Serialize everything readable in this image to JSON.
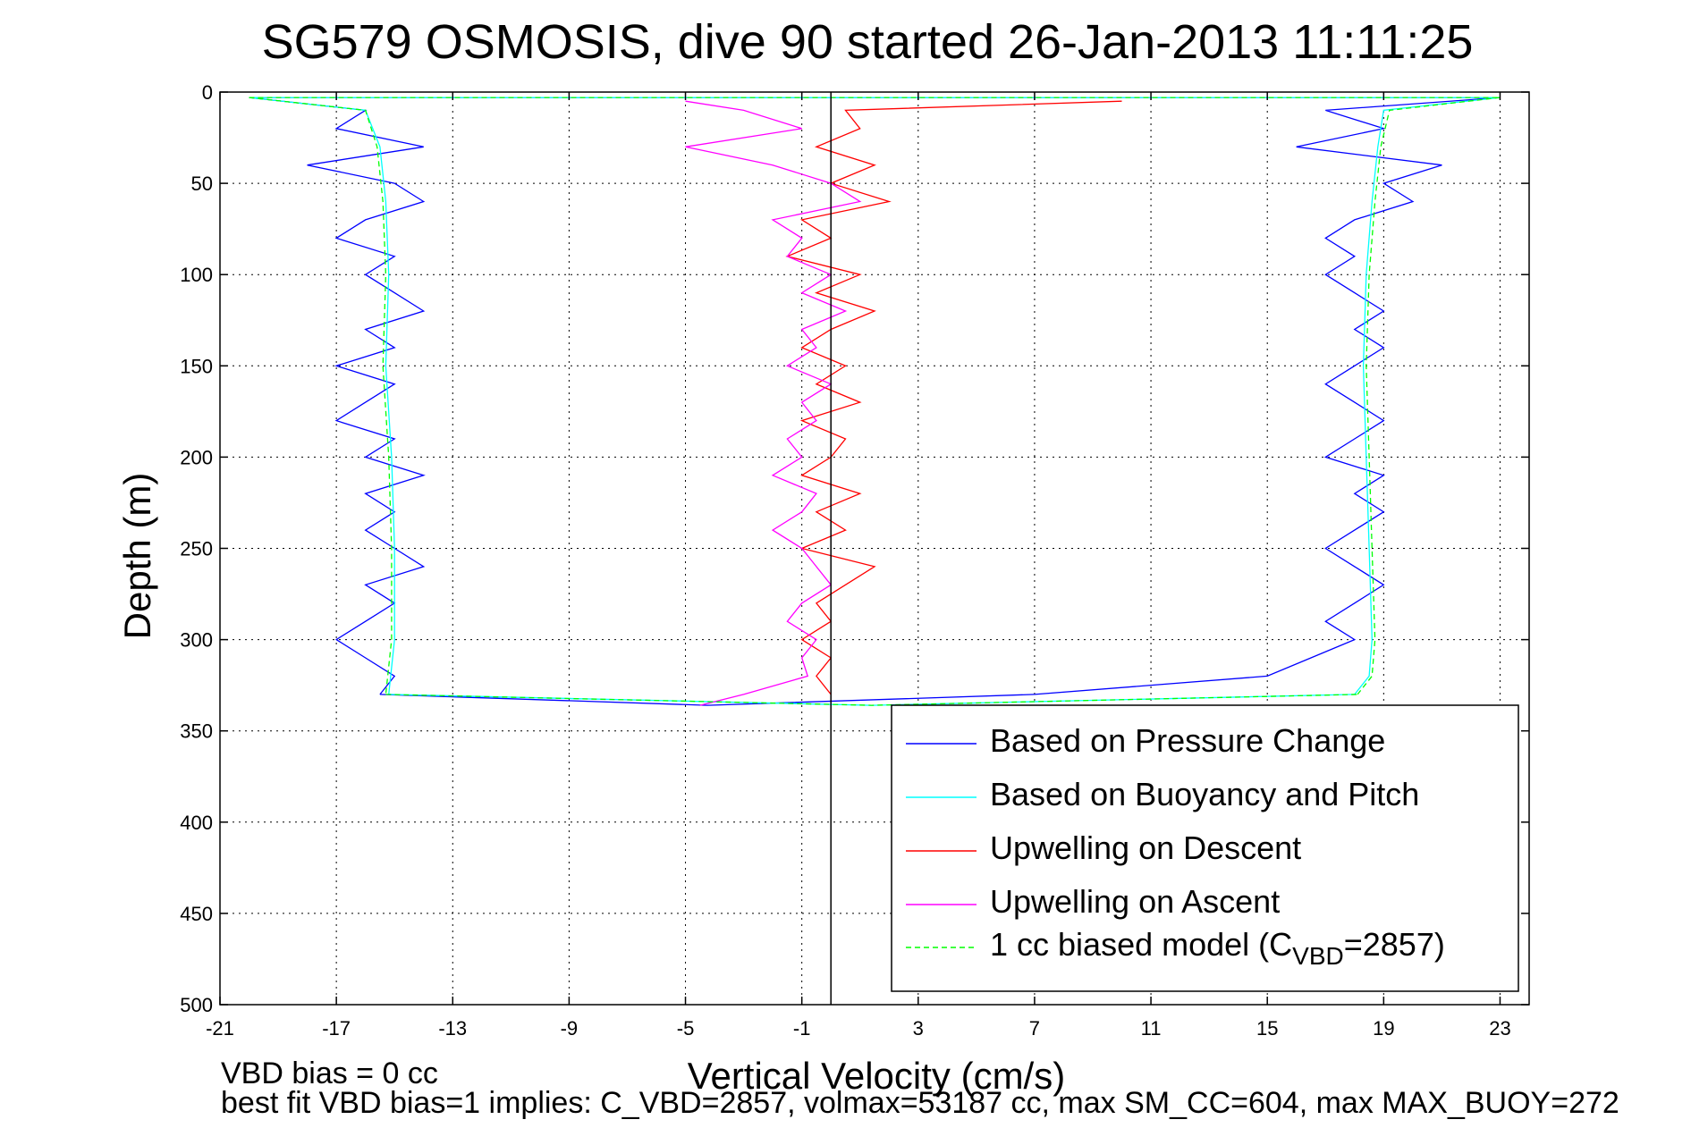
{
  "chart_data": {
    "type": "line",
    "title": "SG579 OSMOSIS, dive 90 started 26-Jan-2013 11:11:25",
    "xlabel": "Vertical Velocity (cm/s)",
    "ylabel": "Depth (m)",
    "xlim": [
      -21,
      24
    ],
    "ylim": [
      0,
      500
    ],
    "y_reversed": true,
    "xticks": [
      -21,
      -17,
      -13,
      -9,
      -5,
      -1,
      3,
      7,
      11,
      15,
      19,
      23
    ],
    "yticks": [
      0,
      50,
      100,
      150,
      200,
      250,
      300,
      350,
      400,
      450,
      500
    ],
    "grid": true,
    "legend_position": "bottom-right",
    "reference_line_x": 0,
    "footer_lines": [
      "VBD bias = 0 cc",
      "best fit VBD bias=1 implies: C_VBD=2857, volmax=53187 cc, max SM_CC=604, max MAX_BUOY=272"
    ],
    "legend": [
      {
        "name": "Based on Pressure Change",
        "color": "#0000ff",
        "dashed": false
      },
      {
        "name": "Based on Buoyancy and Pitch",
        "color": "#00ffff",
        "dashed": false
      },
      {
        "name": "Upwelling on Descent",
        "color": "#ff0000",
        "dashed": false
      },
      {
        "name": "Upwelling on Ascent",
        "color": "#ff00ff",
        "dashed": false
      },
      {
        "name": "1 cc biased model (C",
        "sub": "VBD",
        "suffix": "=2857)",
        "color": "#00ff00",
        "dashed": true
      }
    ],
    "series": [
      {
        "name": "Based on Pressure Change",
        "color": "#0000ff",
        "descent": {
          "depth": [
            3,
            10,
            20,
            30,
            40,
            50,
            60,
            70,
            80,
            90,
            100,
            110,
            120,
            130,
            140,
            150,
            160,
            170,
            180,
            190,
            200,
            210,
            220,
            230,
            240,
            250,
            260,
            270,
            280,
            290,
            300,
            310,
            320,
            330
          ],
          "velocity": [
            -20,
            -16,
            -17,
            -14,
            -18,
            -15,
            -14,
            -16,
            -17,
            -15,
            -16,
            -15,
            -14,
            -16,
            -15,
            -17,
            -15,
            -16,
            -17,
            -15,
            -16,
            -14,
            -16,
            -15,
            -16,
            -15,
            -14,
            -16,
            -15,
            -16,
            -17,
            -16,
            -15,
            -15.5
          ]
        },
        "ascent": {
          "depth": [
            3,
            10,
            20,
            30,
            40,
            50,
            60,
            70,
            80,
            90,
            100,
            110,
            120,
            130,
            140,
            150,
            160,
            170,
            180,
            190,
            200,
            210,
            220,
            230,
            240,
            250,
            260,
            270,
            280,
            290,
            300,
            310,
            320,
            330
          ],
          "velocity": [
            23,
            17,
            19,
            16,
            21,
            19,
            20,
            18,
            17,
            18,
            17,
            18,
            19,
            18,
            19,
            18,
            17,
            18,
            19,
            18,
            17,
            19,
            18,
            19,
            18,
            17,
            18,
            19,
            18,
            17,
            18,
            16.5,
            15,
            7
          ]
        }
      },
      {
        "name": "Based on Buoyancy and Pitch",
        "color": "#00ffff",
        "descent": {
          "depth": [
            3,
            10,
            30,
            60,
            100,
            150,
            200,
            250,
            300,
            330
          ],
          "velocity": [
            -20,
            -16,
            -15.5,
            -15.3,
            -15.2,
            -15.3,
            -15.1,
            -15,
            -15,
            -15.2
          ]
        },
        "ascent": {
          "depth": [
            3,
            10,
            30,
            60,
            100,
            150,
            200,
            250,
            300,
            320,
            330
          ],
          "velocity": [
            23,
            19,
            18.8,
            18.6,
            18.4,
            18.3,
            18.4,
            18.5,
            18.6,
            18.5,
            18
          ]
        }
      },
      {
        "name": "Upwelling on Descent",
        "color": "#ff0000",
        "depth": [
          5,
          10,
          20,
          30,
          40,
          50,
          60,
          70,
          80,
          90,
          100,
          110,
          120,
          130,
          140,
          150,
          160,
          170,
          180,
          190,
          200,
          210,
          220,
          230,
          240,
          250,
          260,
          270,
          280,
          290,
          300,
          310,
          320,
          330
        ],
        "velocity": [
          10,
          0.5,
          1,
          -0.5,
          1.5,
          0,
          2,
          -1,
          0,
          -1.5,
          1,
          -0.5,
          1.5,
          0,
          -1,
          0.5,
          -0.5,
          1,
          -1,
          0.5,
          0,
          -1,
          1,
          -0.5,
          0.5,
          -1,
          1.5,
          0.5,
          -0.5,
          0,
          -1,
          0,
          -0.5,
          0
        ]
      },
      {
        "name": "Upwelling on Ascent",
        "color": "#ff00ff",
        "depth": [
          5,
          10,
          20,
          30,
          40,
          50,
          60,
          70,
          80,
          90,
          100,
          110,
          120,
          130,
          140,
          150,
          160,
          170,
          180,
          190,
          200,
          210,
          220,
          230,
          240,
          250,
          260,
          270,
          280,
          290,
          300,
          310,
          320,
          330,
          336
        ],
        "velocity": [
          -5,
          -3,
          -1,
          -5,
          -2,
          0,
          1,
          -2,
          -1,
          -1.5,
          0,
          -1,
          0.5,
          -1,
          -0.5,
          -1.5,
          0,
          -1,
          -0.5,
          -1.5,
          -1,
          -2,
          -0.5,
          -1,
          -2,
          -1,
          -0.5,
          0,
          -1,
          -1.5,
          -0.5,
          -1,
          -0.8,
          -3,
          -4.5
        ]
      },
      {
        "name": "1 cc biased model",
        "color": "#00ff00",
        "dashed": true,
        "descent": {
          "depth": [
            3,
            10,
            30,
            60,
            100,
            150,
            200,
            250,
            300,
            330
          ],
          "velocity": [
            -20,
            -16,
            -15.6,
            -15.4,
            -15.3,
            -15.4,
            -15.2,
            -15.1,
            -15.1,
            -15.3
          ]
        },
        "ascent": {
          "depth": [
            3,
            10,
            30,
            60,
            100,
            150,
            200,
            250,
            300,
            320,
            330
          ],
          "velocity": [
            23,
            19.2,
            18.9,
            18.7,
            18.5,
            18.4,
            18.5,
            18.6,
            18.7,
            18.6,
            18.1
          ]
        }
      }
    ]
  }
}
